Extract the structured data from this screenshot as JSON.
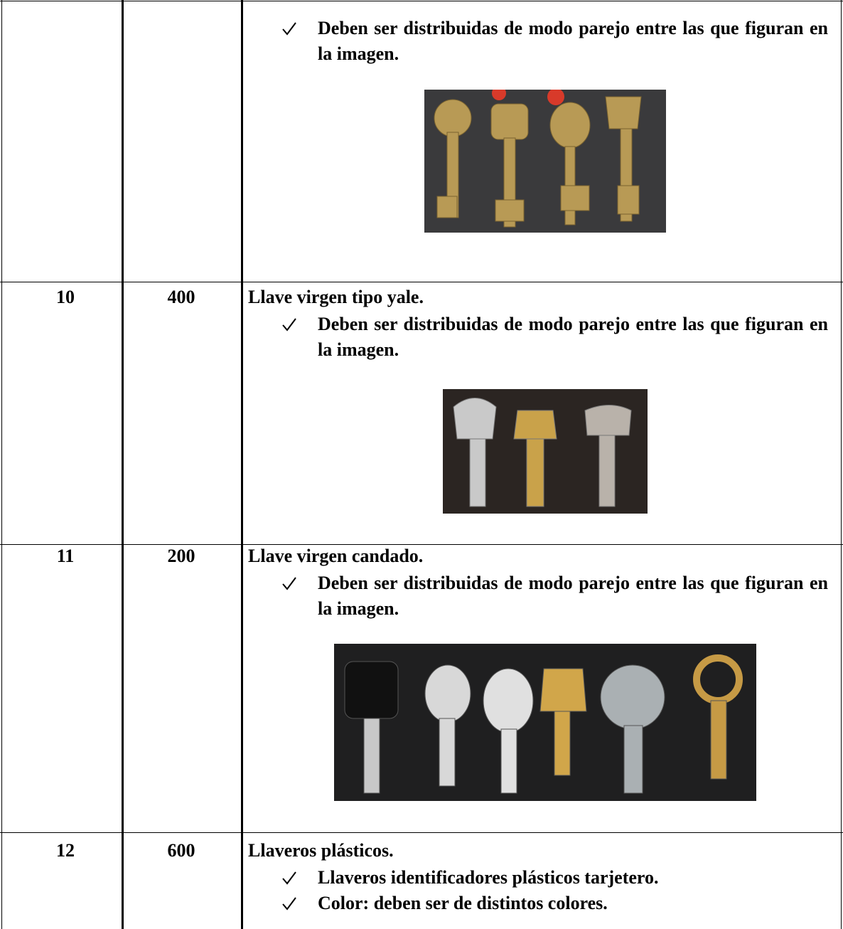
{
  "table": {
    "rows": [
      {
        "bullets": [
          "Deben ser distribuidas de modo parejo entre las que figuran en la imagen."
        ]
      },
      {
        "item": "10",
        "quantity": "400",
        "description": "Llave virgen tipo yale.",
        "bullets": [
          "Deben ser distribuidas de modo parejo entre las que figuran en la imagen."
        ]
      },
      {
        "item": "11",
        "quantity": "200",
        "description": "Llave virgen candado.",
        "bullets": [
          "Deben ser distribuidas de modo parejo entre las que figuran en la imagen."
        ]
      },
      {
        "item": "12",
        "quantity": "600",
        "description": "Llaveros plásticos.",
        "bullets": [
          "Llaveros identificadores plásticos tarjetero.",
          "Color: deben ser de distintos colores."
        ]
      }
    ]
  }
}
